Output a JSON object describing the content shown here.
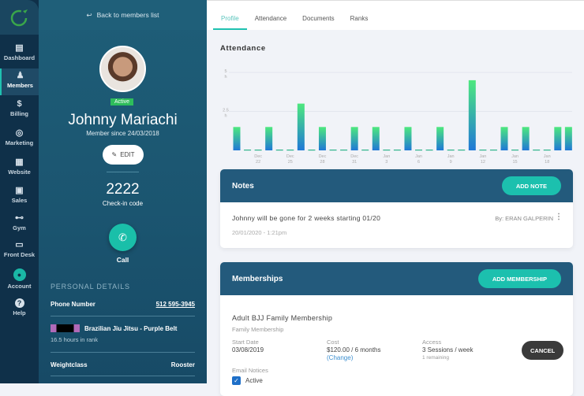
{
  "nav": {
    "items": [
      {
        "label": "Dashboard",
        "icon": "dashboard-icon",
        "glyph": "▤"
      },
      {
        "label": "Members",
        "icon": "members-icon",
        "glyph": "♟",
        "active": true
      },
      {
        "label": "Billing",
        "icon": "billing-icon",
        "glyph": "$"
      },
      {
        "label": "Marketing",
        "icon": "marketing-icon",
        "glyph": "◎"
      },
      {
        "label": "Website",
        "icon": "website-icon",
        "glyph": "▦"
      },
      {
        "label": "Sales",
        "icon": "sales-icon",
        "glyph": "▣"
      },
      {
        "label": "Gym",
        "icon": "gym-icon",
        "glyph": "⊷"
      },
      {
        "label": "Front Desk",
        "icon": "front-desk-icon",
        "glyph": "▭"
      },
      {
        "label": "Account",
        "icon": "account-icon",
        "glyph": "●"
      },
      {
        "label": "Help",
        "icon": "help-icon",
        "glyph": "?"
      }
    ]
  },
  "profile": {
    "back": "Back to members list",
    "status": "Active",
    "name": "Johnny Mariachi",
    "since": "Member since 24/03/2018",
    "edit": "EDIT",
    "checkin_code": "2222",
    "checkin_label": "Check-in code",
    "call": "Call",
    "section": "PERSONAL DETAILS",
    "phone_label": "Phone Number",
    "phone": "512 595-3945",
    "rank": "Brazilian Jiu Jitsu - Purple Belt",
    "rank_time": "16.5 hours in rank",
    "weight_label": "Weightclass",
    "weight": "Rooster"
  },
  "tabs": [
    "Profile",
    "Attendance",
    "Documents",
    "Ranks"
  ],
  "attendance": {
    "title": "Attendance"
  },
  "chart_data": {
    "type": "bar",
    "ylabel": "",
    "yticks": [
      "5 h",
      "2.5 h"
    ],
    "ylim": [
      0,
      5
    ],
    "unit": "h",
    "categories": [
      "Dec 20",
      "Dec 21",
      "Dec 22",
      "Dec 23",
      "Dec 24",
      "Dec 25",
      "Dec 26",
      "Dec 27",
      "Dec 28",
      "Dec 29",
      "Dec 30",
      "Dec 31",
      "Jan 1",
      "Jan 2",
      "Jan 3",
      "Jan 4",
      "Jan 5",
      "Jan 6",
      "Jan 7",
      "Jan 8",
      "Jan 9",
      "Jan 10",
      "Jan 11",
      "Jan 12",
      "Jan 13",
      "Jan 14",
      "Jan 15",
      "Jan 16",
      "Jan 17",
      "Jan 18",
      "Jan 19",
      "Jan 20"
    ],
    "tick_labels": [
      {
        "i": 2,
        "m": "Dec",
        "d": "22"
      },
      {
        "i": 5,
        "m": "Dec",
        "d": "25"
      },
      {
        "i": 8,
        "m": "Dec",
        "d": "28"
      },
      {
        "i": 11,
        "m": "Dec",
        "d": "31"
      },
      {
        "i": 14,
        "m": "Jan",
        "d": "3"
      },
      {
        "i": 17,
        "m": "Jan",
        "d": "6"
      },
      {
        "i": 20,
        "m": "Jan",
        "d": "9"
      },
      {
        "i": 23,
        "m": "Jan",
        "d": "12"
      },
      {
        "i": 26,
        "m": "Jan",
        "d": "15"
      },
      {
        "i": 29,
        "m": "Jan",
        "d": "18"
      }
    ],
    "values": [
      1.5,
      0,
      0,
      1.5,
      0,
      0,
      3,
      0,
      1.5,
      0,
      0,
      1.5,
      0,
      1.5,
      0,
      0,
      1.5,
      0,
      0,
      1.5,
      0,
      0,
      4.5,
      0,
      0,
      1.5,
      0,
      1.5,
      0,
      0,
      1.5,
      1.5
    ],
    "colors": {
      "top": "#4ee87e",
      "bottom": "#1f78d6"
    },
    "grid": true
  },
  "notes": {
    "title": "Notes",
    "add": "ADD NOTE",
    "text": "Johnny will be gone for 2 weeks starting 01/20",
    "date": "20/01/2020 - 1:21pm",
    "author": "By: ERAN GALPERIN"
  },
  "memberships": {
    "title": "Memberships",
    "add": "ADD MEMBERSHIP",
    "name": "Adult BJJ Family Membership",
    "type": "Family Membership",
    "start_label": "Start Date",
    "start": "03/08/2019",
    "cost_label": "Cost",
    "cost": "$120.00 / 6 months",
    "change": "(Change)",
    "access_label": "Access",
    "access": "3 Sessions / week",
    "remaining": "1 remaining",
    "cancel": "CANCEL",
    "email_label": "Email Notices",
    "email_status": "Active"
  }
}
